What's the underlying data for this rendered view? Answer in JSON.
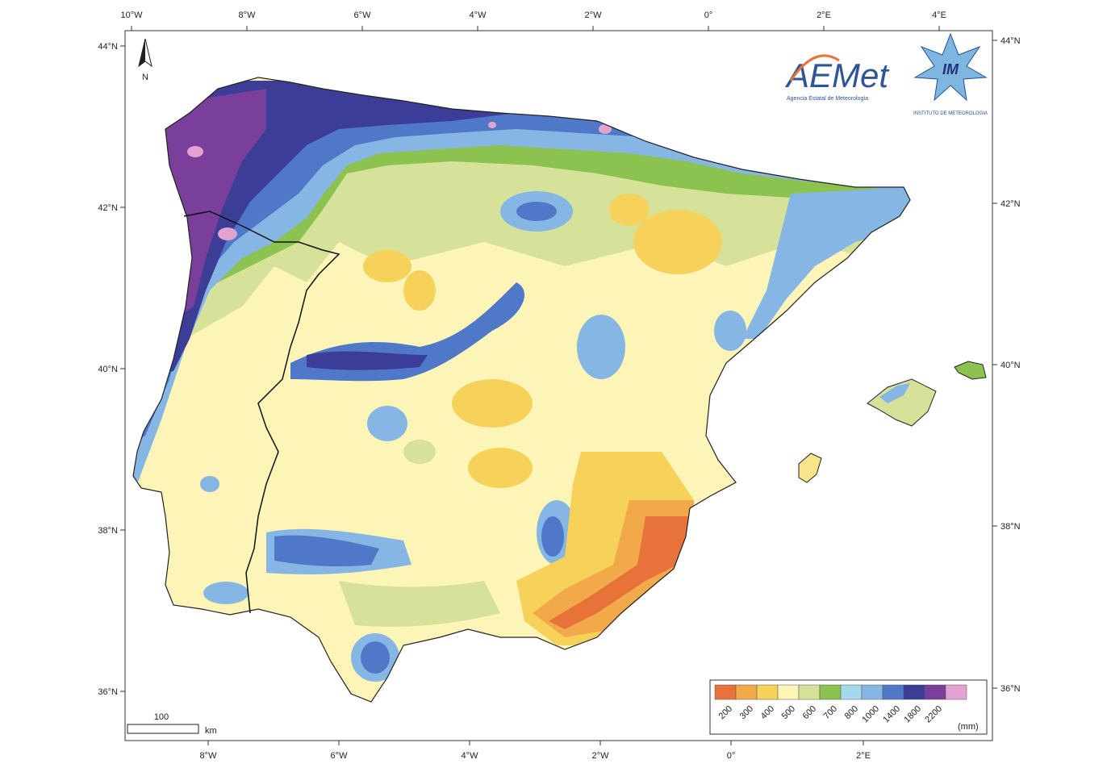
{
  "frame": {
    "top_lon_ticks": [
      "10°W",
      "8°W",
      "6°W",
      "4°W",
      "2°W",
      "0°",
      "2°E",
      "4°E"
    ],
    "bottom_lon_ticks": [
      "8°W",
      "6°W",
      "4°W",
      "2°W",
      "0°",
      "2°E"
    ],
    "left_lat_ticks": [
      "44°N",
      "42°N",
      "40°N",
      "38°N",
      "36°N"
    ],
    "right_lat_ticks": [
      "44°N",
      "42°N",
      "40°N",
      "38°N",
      "36°N"
    ]
  },
  "north_arrow": {
    "label": "N"
  },
  "scale_bar": {
    "value": "100",
    "unit": "km"
  },
  "logos": {
    "aemet": {
      "wordmark": "AEMet",
      "subtitle": "Agencia Estatal de Meteorología"
    },
    "im": {
      "monogram": "IM",
      "subtitle": "INSTITUTO DE METEOROLOGIA"
    }
  },
  "legend": {
    "unit": "(mm)",
    "breaks": [
      "200",
      "300",
      "400",
      "500",
      "600",
      "700",
      "800",
      "1000",
      "1400",
      "1800",
      "2200"
    ],
    "colors": [
      "#e8733a",
      "#f2a94a",
      "#f7d25a",
      "#fdf4b8",
      "#d6e29a",
      "#8cc24f",
      "#a4d9ec",
      "#86b6e4",
      "#4f79c8",
      "#3b3d96",
      "#7a3f9a",
      "#e4a2d0"
    ]
  },
  "colors": {
    "land_dry_orange": "#e8733a",
    "land_yellow": "#f7d25a",
    "land_cream": "#fdf4b8",
    "land_green": "#8cc24f",
    "land_blue": "#4f79c8",
    "land_purple": "#7a3f9a"
  }
}
